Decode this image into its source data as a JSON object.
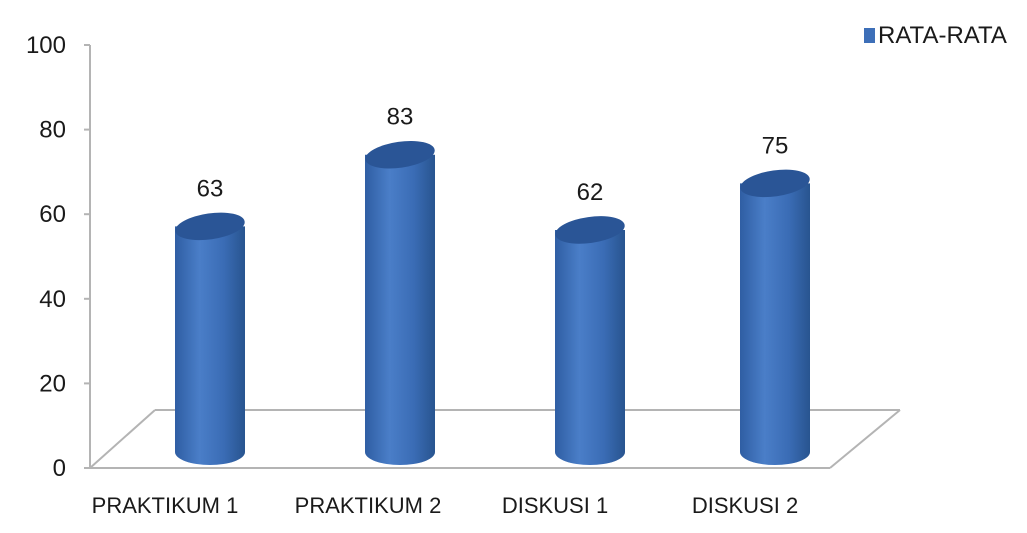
{
  "chart_data": {
    "type": "bar",
    "categories": [
      "PRAKTIKUM 1",
      "PRAKTIKUM 2",
      "DISKUSI 1",
      "DISKUSI 2"
    ],
    "series": [
      {
        "name": "RATA-RATA",
        "values": [
          63,
          83,
          62,
          75
        ],
        "data_labels": [
          "63",
          "83",
          "62",
          "75"
        ]
      }
    ],
    "ylim": [
      0,
      100
    ],
    "yticks": [
      0,
      20,
      40,
      60,
      80,
      100
    ],
    "ytick_labels": [
      "0",
      "20",
      "40",
      "60",
      "80",
      "100"
    ],
    "grid": false,
    "legend_position": "top-right",
    "bar_shape": "cylinder",
    "colors": {
      "bar": "#3d6fb8",
      "bar_top": "#2a5596",
      "axis": "#b4b4b4"
    }
  }
}
